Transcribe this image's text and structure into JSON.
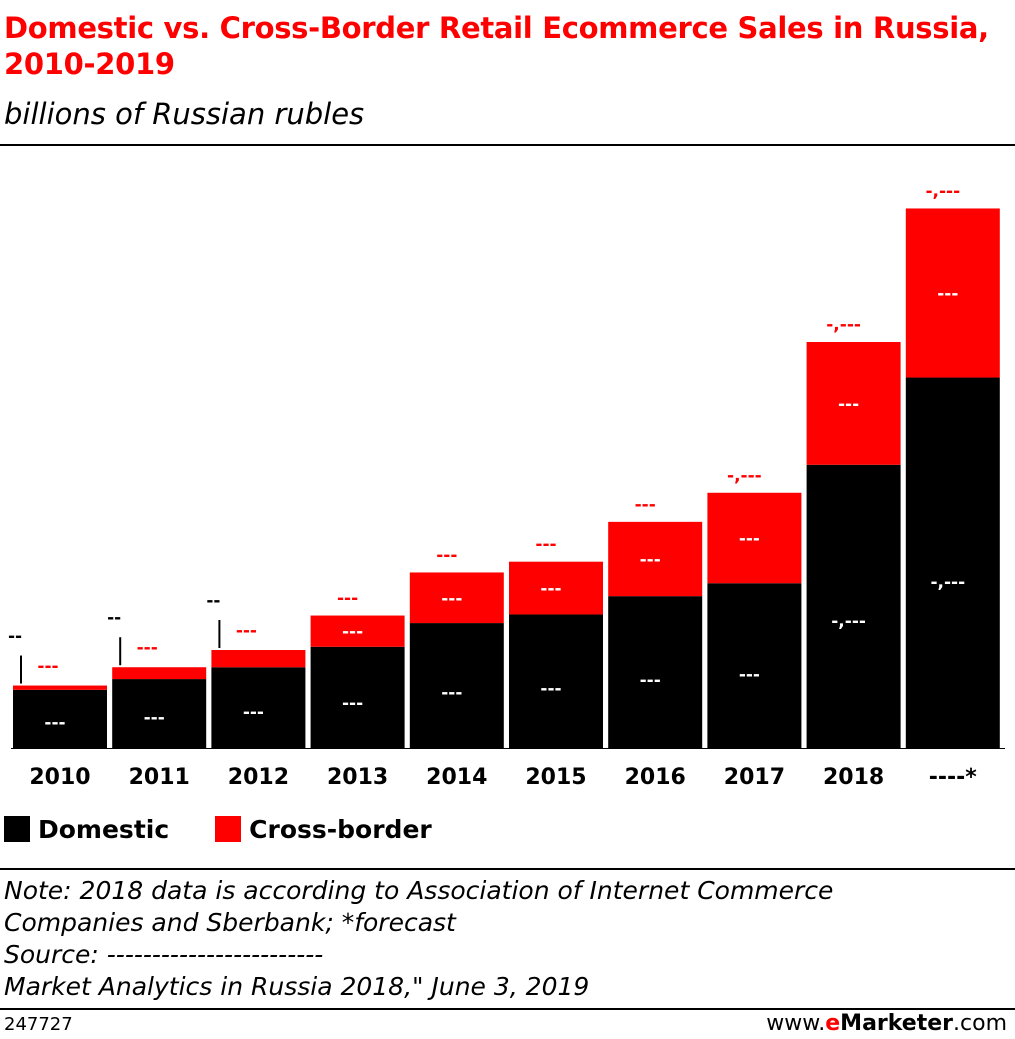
{
  "header": {
    "title": "Domestic vs. Cross-Border Retail Ecommerce Sales in Russia, 2010-2019",
    "subtitle": "billions of Russian rubles"
  },
  "legend": {
    "items": [
      {
        "label": "Domestic",
        "color": "#000000"
      },
      {
        "label": "Cross-border",
        "color": "#ff0000"
      }
    ]
  },
  "notes": {
    "line1": "Note: 2018 data is according to Association of Internet Commerce",
    "line2": "Companies and Sberbank; *forecast",
    "line3": "Source: ------------------------",
    "line4": "Market Analytics in Russia 2018,\" June 3, 2019"
  },
  "footer": {
    "chart_id": "247727",
    "brand_prefix": "www.",
    "brand_e": "e",
    "brand_name": "Marketer",
    "brand_suffix": ".com"
  },
  "colors": {
    "domestic": "#000000",
    "cross_border": "#ff0000",
    "accent": "#ff0000"
  },
  "chart_data": {
    "type": "bar",
    "stacked": true,
    "categories": [
      "2010",
      "2011",
      "2012",
      "2013",
      "2014",
      "2015",
      "2016",
      "2017",
      "2018",
      "----*"
    ],
    "series": [
      {
        "name": "Domestic",
        "values": [
          270,
          320,
          375,
          470,
          580,
          620,
          705,
          765,
          1315,
          1720
        ]
      },
      {
        "name": "Cross-border",
        "values": [
          20,
          55,
          80,
          145,
          235,
          245,
          345,
          420,
          570,
          785
        ]
      }
    ],
    "data_labels": {
      "domestic": [
        "---",
        "---",
        "---",
        "---",
        "---",
        "---",
        "---",
        "---",
        "-,---",
        "-,---"
      ],
      "cross_border": [
        "---",
        "---",
        "---",
        "---",
        "---",
        "---",
        "---",
        "---",
        "---",
        "---"
      ],
      "total": [
        "--",
        "--",
        "--",
        "---",
        "---",
        "---",
        "---",
        "-,---",
        "-,---",
        "-,---"
      ]
    },
    "ylim": [
      0,
      2600
    ],
    "grid": false,
    "legend_position": "bottom-left"
  }
}
